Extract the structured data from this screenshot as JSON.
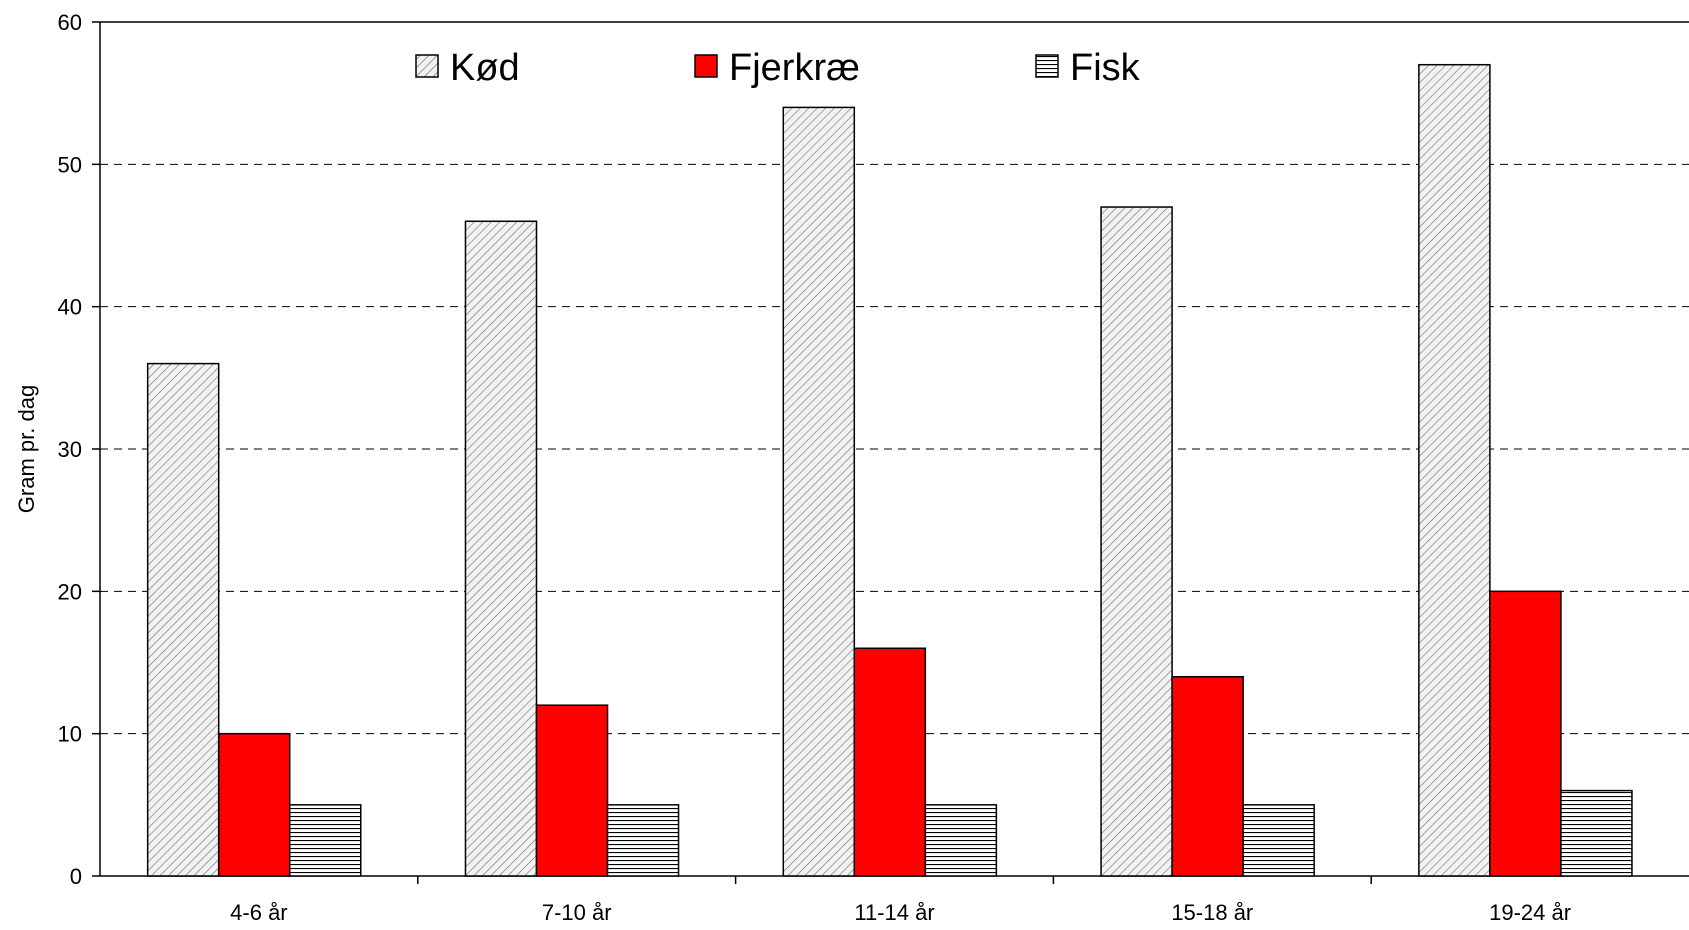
{
  "chart_data": {
    "type": "bar",
    "title": "",
    "xlabel": "",
    "ylabel": "Gram pr. dag",
    "ylim": [
      0,
      60
    ],
    "yticks": [
      0,
      10,
      20,
      30,
      40,
      50,
      60
    ],
    "grid": "horizontal-dashed",
    "legend_position": "top",
    "categories": [
      "4-6 år",
      "7-10 år",
      "11-14 år",
      "15-18 år",
      "19-24 år"
    ],
    "series": [
      {
        "name": "Kød",
        "values": [
          36,
          46,
          54,
          47,
          57
        ],
        "color": "#e6e6e6",
        "pattern": "diagonal-hatch"
      },
      {
        "name": "Fjerkræ",
        "values": [
          10,
          12,
          16,
          14,
          20
        ],
        "color": "#ff0000",
        "pattern": "solid"
      },
      {
        "name": "Fisk",
        "values": [
          5,
          5,
          5,
          5,
          6
        ],
        "color": "#ffffff",
        "pattern": "horizontal-lines"
      }
    ]
  }
}
